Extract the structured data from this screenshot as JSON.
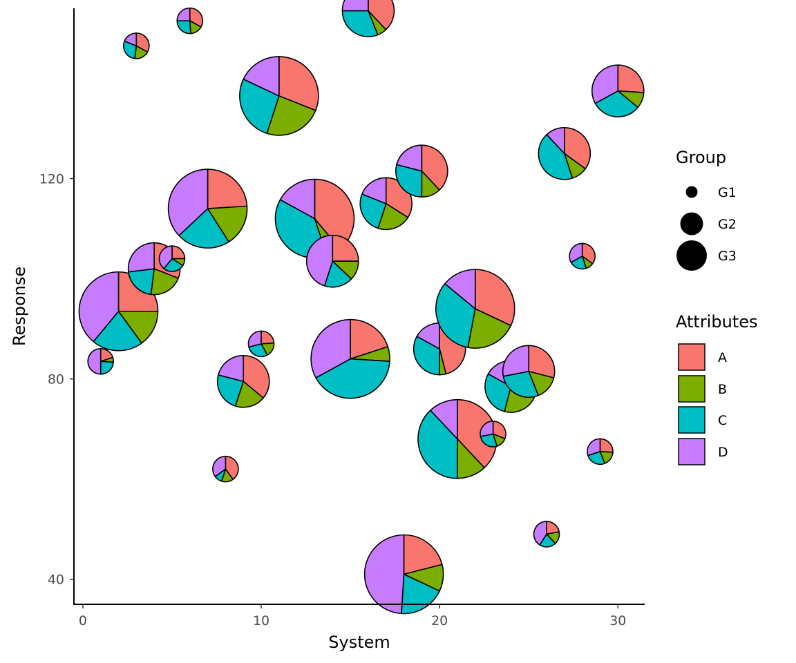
{
  "chart_data": {
    "type": "scatter",
    "subtype": "scatter-pie",
    "xlabel": "System",
    "ylabel": "Response",
    "xlim": [
      -0.5,
      31.5
    ],
    "ylim": [
      35,
      154
    ],
    "x_ticks": [
      0,
      10,
      20,
      30
    ],
    "y_ticks": [
      40,
      80,
      120
    ],
    "grid": false,
    "legend_position": "right",
    "attributes": [
      "A",
      "B",
      "C",
      "D"
    ],
    "attribute_colors": {
      "A": "#F8766D",
      "B": "#7CAE00",
      "C": "#00BFC4",
      "D": "#C77CFF"
    },
    "groups": [
      "G1",
      "G2",
      "G3"
    ],
    "legend": {
      "group_title": "Group",
      "group_labels": [
        "G1",
        "G2",
        "G3"
      ],
      "attr_title": "Attributes",
      "attr_labels": [
        "A",
        "B",
        "C",
        "D"
      ]
    },
    "points": [
      {
        "x": 1,
        "y": 83.5,
        "group": "G1",
        "shares": [
          0.2,
          0.06,
          0.24,
          0.5
        ]
      },
      {
        "x": 2,
        "y": 93.5,
        "group": "G3",
        "shares": [
          0.25,
          0.15,
          0.21,
          0.39
        ]
      },
      {
        "x": 3,
        "y": 146.5,
        "group": "G1",
        "shares": [
          0.33,
          0.19,
          0.29,
          0.19
        ]
      },
      {
        "x": 4,
        "y": 102.0,
        "group": "G2",
        "shares": [
          0.31,
          0.21,
          0.21,
          0.27
        ]
      },
      {
        "x": 5,
        "y": 104.0,
        "group": "G1",
        "shares": [
          0.25,
          0.09,
          0.27,
          0.39
        ]
      },
      {
        "x": 6,
        "y": 151.5,
        "group": "G1",
        "shares": [
          0.33,
          0.16,
          0.26,
          0.25
        ]
      },
      {
        "x": 7,
        "y": 114.0,
        "group": "G3",
        "shares": [
          0.24,
          0.17,
          0.22,
          0.37
        ]
      },
      {
        "x": 8,
        "y": 62.0,
        "group": "G1",
        "shares": [
          0.4,
          0.15,
          0.1,
          0.35
        ]
      },
      {
        "x": 9,
        "y": 79.5,
        "group": "G2",
        "shares": [
          0.36,
          0.19,
          0.24,
          0.21
        ]
      },
      {
        "x": 10,
        "y": 87.0,
        "group": "G1",
        "shares": [
          0.24,
          0.18,
          0.29,
          0.29
        ]
      },
      {
        "x": 11,
        "y": 136.5,
        "group": "G3",
        "shares": [
          0.31,
          0.24,
          0.27,
          0.18
        ]
      },
      {
        "x": 13,
        "y": 112.0,
        "group": "G3",
        "shares": [
          0.39,
          0.06,
          0.38,
          0.17
        ]
      },
      {
        "x": 14,
        "y": 103.5,
        "group": "G2",
        "shares": [
          0.25,
          0.12,
          0.18,
          0.45
        ]
      },
      {
        "x": 15,
        "y": 84.0,
        "group": "G3",
        "shares": [
          0.2,
          0.06,
          0.41,
          0.33
        ]
      },
      {
        "x": 16,
        "y": 153.5,
        "group": "G2",
        "shares": [
          0.38,
          0.06,
          0.31,
          0.25
        ]
      },
      {
        "x": 17,
        "y": 115.0,
        "group": "G2",
        "shares": [
          0.34,
          0.21,
          0.26,
          0.19
        ]
      },
      {
        "x": 19,
        "y": 121.5,
        "group": "G2",
        "shares": [
          0.38,
          0.12,
          0.29,
          0.21
        ]
      },
      {
        "x": 18,
        "y": 41.0,
        "group": "G3",
        "shares": [
          0.21,
          0.11,
          0.19,
          0.49
        ]
      },
      {
        "x": 20,
        "y": 86.0,
        "group": "G2",
        "shares": [
          0.46,
          0.04,
          0.33,
          0.17
        ]
      },
      {
        "x": 21,
        "y": 68.0,
        "group": "G3",
        "shares": [
          0.38,
          0.12,
          0.38,
          0.12
        ]
      },
      {
        "x": 22,
        "y": 94.0,
        "group": "G3",
        "shares": [
          0.32,
          0.21,
          0.33,
          0.14
        ]
      },
      {
        "x": 23,
        "y": 69.0,
        "group": "G1",
        "shares": [
          0.31,
          0.14,
          0.27,
          0.28
        ]
      },
      {
        "x": 24,
        "y": 78.5,
        "group": "G2",
        "shares": [
          0.32,
          0.22,
          0.29,
          0.17
        ]
      },
      {
        "x": 25,
        "y": 81.5,
        "group": "G2",
        "shares": [
          0.29,
          0.15,
          0.28,
          0.28
        ]
      },
      {
        "x": 26,
        "y": 49.0,
        "group": "G1",
        "shares": [
          0.22,
          0.16,
          0.21,
          0.41
        ]
      },
      {
        "x": 27,
        "y": 125.0,
        "group": "G2",
        "shares": [
          0.35,
          0.1,
          0.43,
          0.12
        ]
      },
      {
        "x": 28,
        "y": 104.5,
        "group": "G1",
        "shares": [
          0.35,
          0.1,
          0.22,
          0.33
        ]
      },
      {
        "x": 29,
        "y": 65.5,
        "group": "G1",
        "shares": [
          0.26,
          0.18,
          0.26,
          0.3
        ]
      },
      {
        "x": 30,
        "y": 137.5,
        "group": "G2",
        "shares": [
          0.26,
          0.1,
          0.31,
          0.33
        ]
      }
    ]
  }
}
